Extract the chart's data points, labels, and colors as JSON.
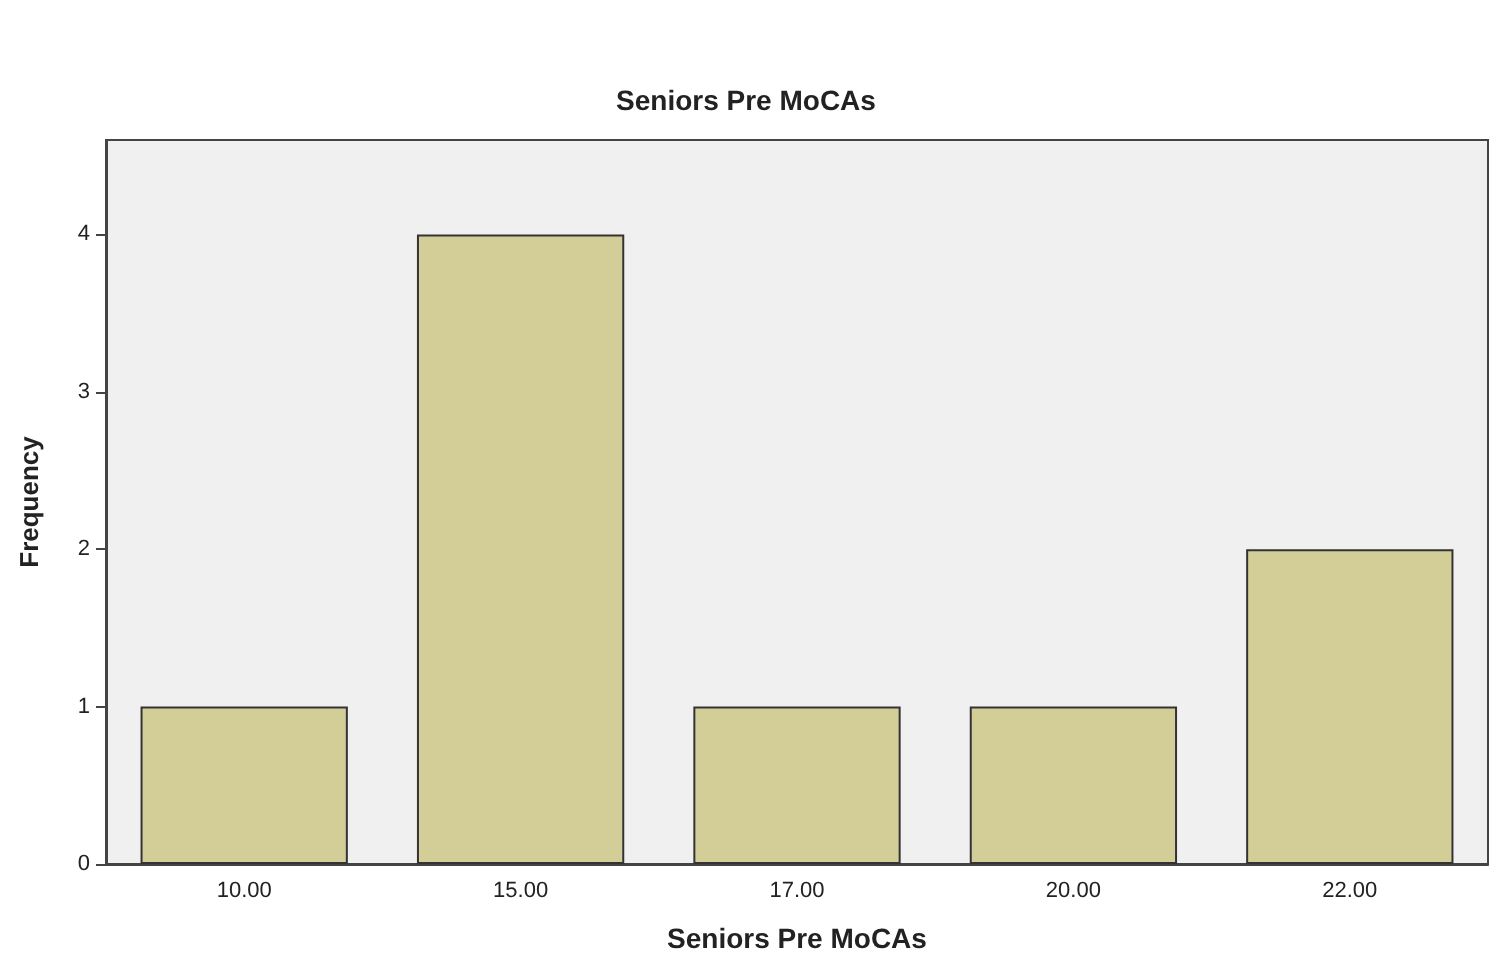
{
  "chart_data": {
    "type": "bar",
    "title": "Seniors Pre MoCAs",
    "xlabel": "Seniors Pre MoCAs",
    "ylabel": "Frequency",
    "categories": [
      "10.00",
      "15.00",
      "17.00",
      "20.00",
      "22.00"
    ],
    "values": [
      1,
      4,
      1,
      1,
      2
    ],
    "color": "#d3ce97",
    "ylim": [
      0,
      4.6
    ],
    "yticks": [
      0,
      1,
      2,
      3,
      4
    ],
    "grid": false
  }
}
